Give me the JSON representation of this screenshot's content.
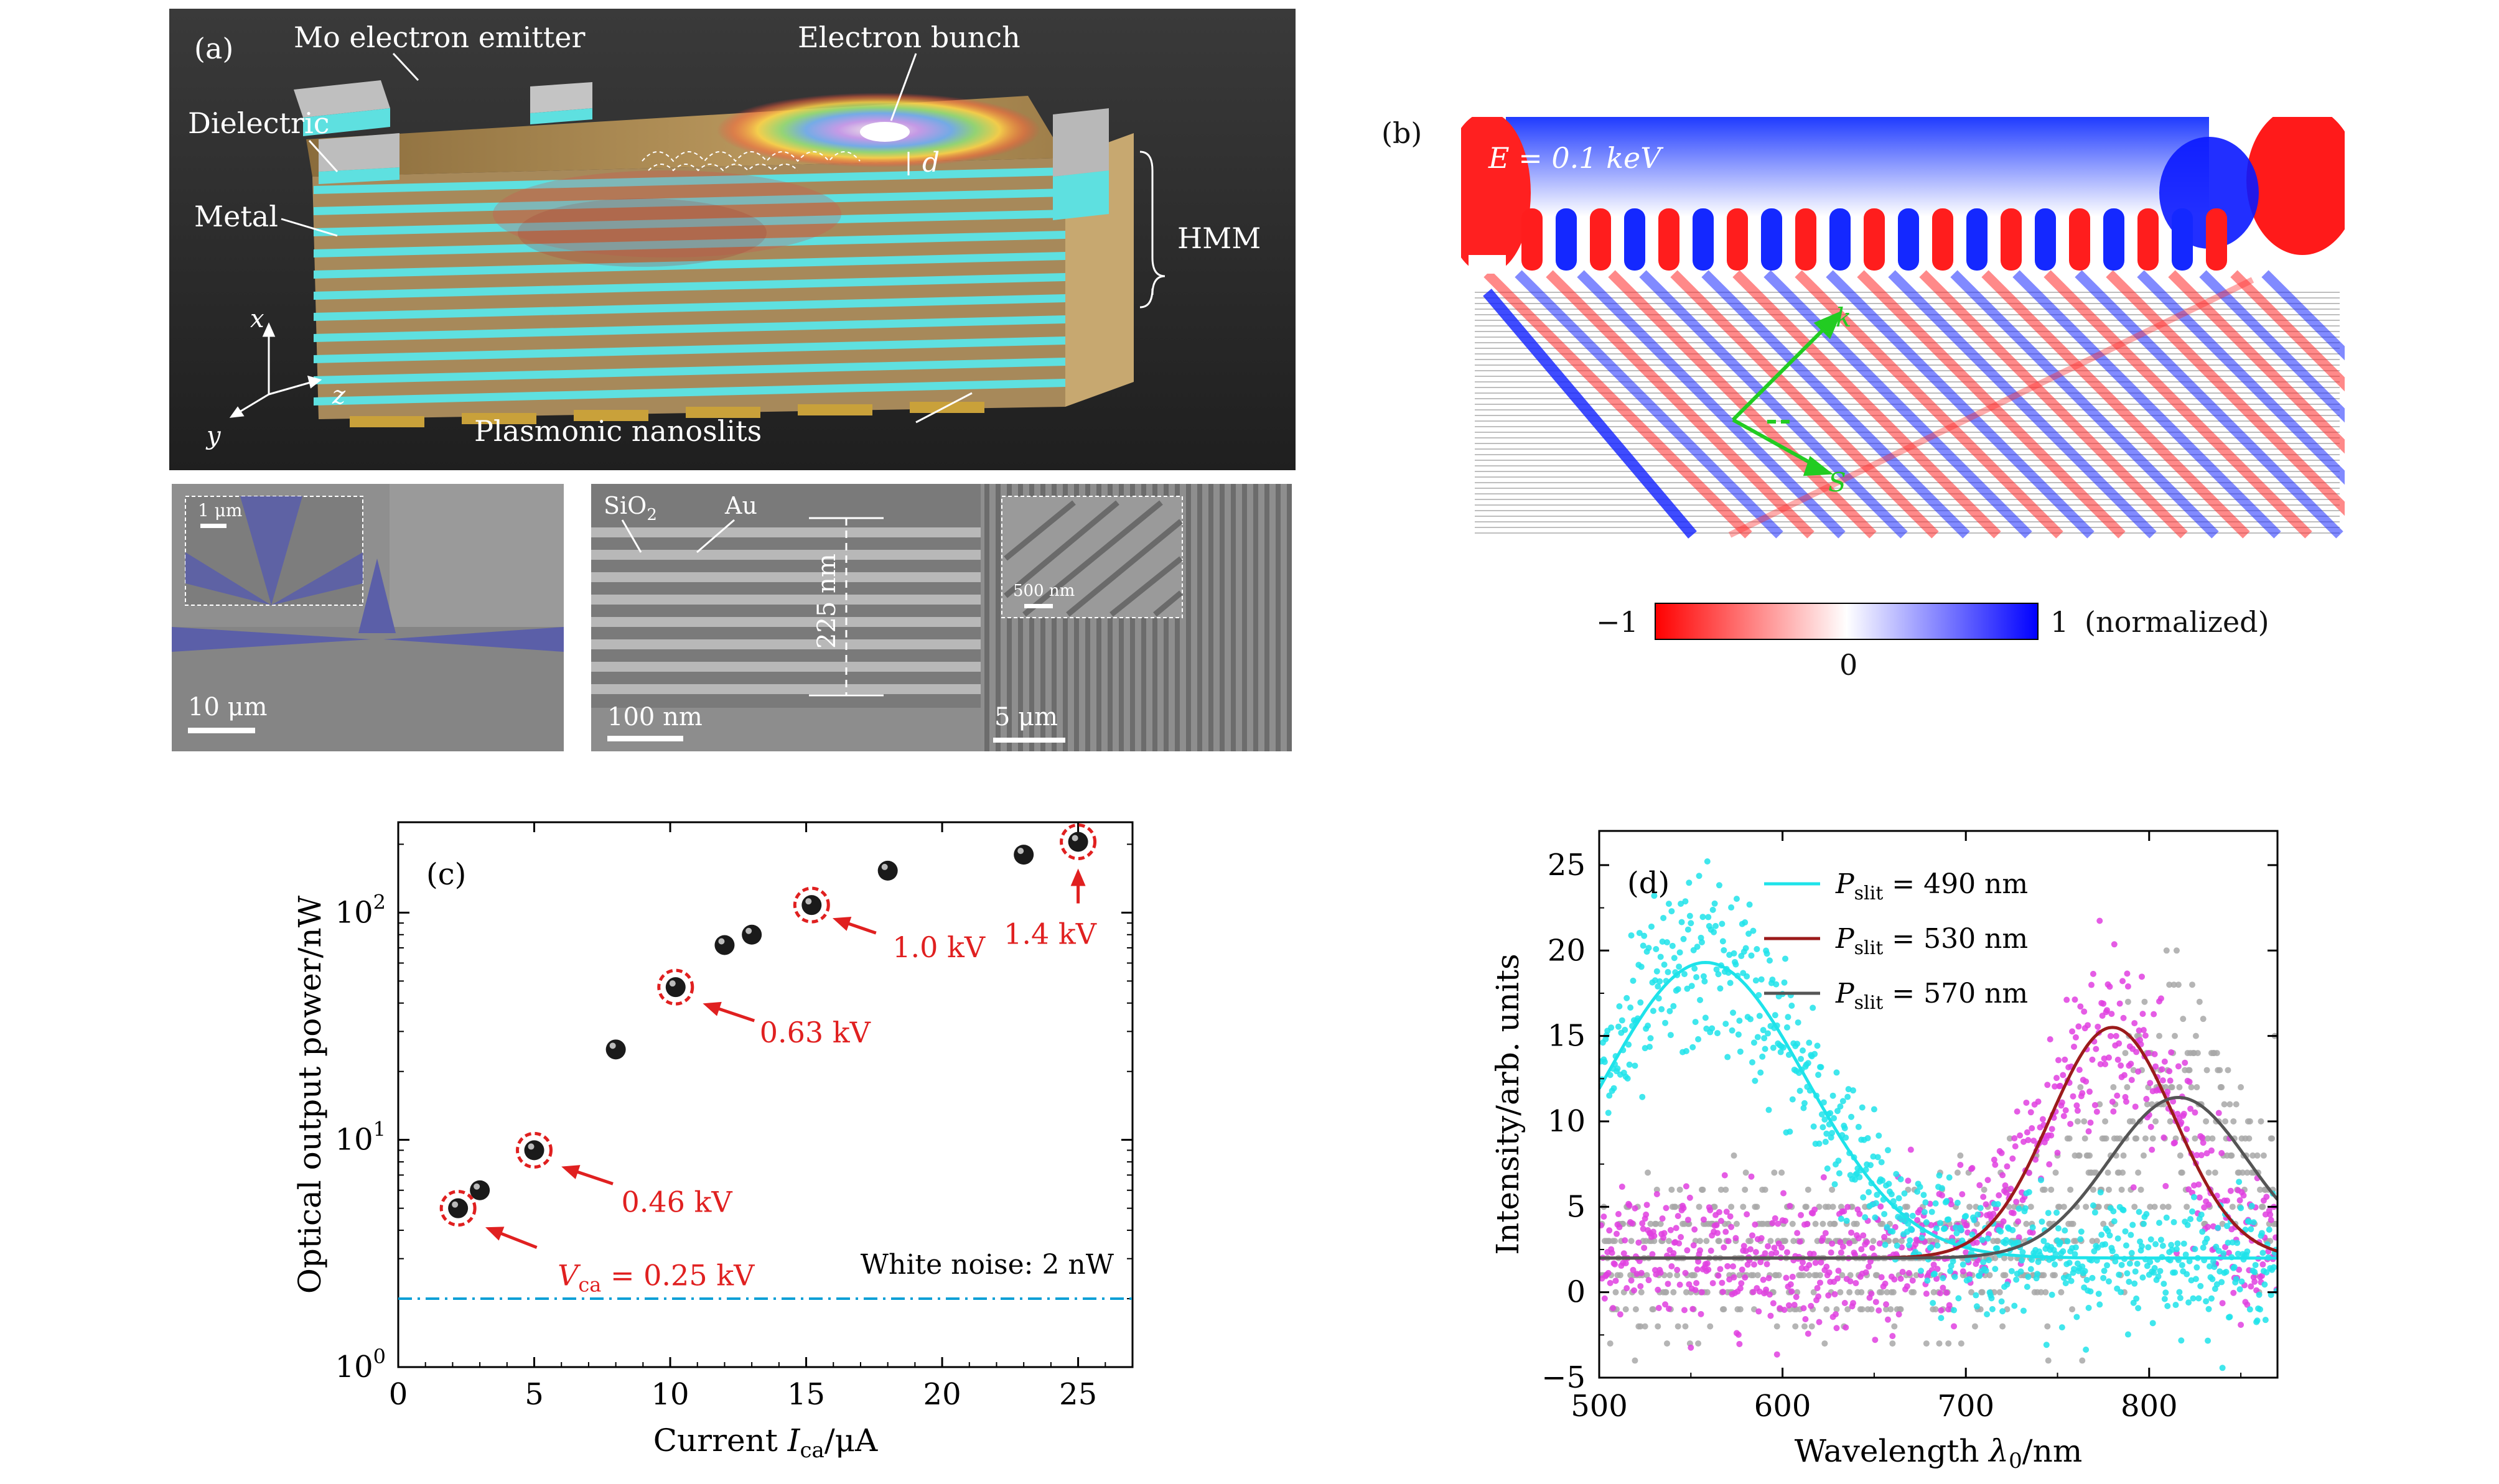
{
  "panel_a": {
    "label": "(a)",
    "mo_emitter": "Mo electron emitter",
    "electron_bunch": "Electron bunch",
    "dielectric": "Dielectric",
    "metal": "Metal",
    "hmm": "HMM",
    "d": "d",
    "nanoslits": "Plasmonic nanoslits",
    "axis_x": "x",
    "axis_y": "y",
    "axis_z": "z",
    "sem1": {
      "scale": "10 μm",
      "inset_scale": "1 μm"
    },
    "sem2": {
      "scale": "100 nm",
      "sio2": "SiO",
      "sio2_sub": "2",
      "au": "Au",
      "thickness": "225 nm"
    },
    "sem3": {
      "scale": "5 μm",
      "inset_scale": "500 nm"
    }
  },
  "panel_b": {
    "label": "(b)",
    "energy": "E = 0.1 keV",
    "k": "k",
    "s": "S",
    "cbar_min": "−1",
    "cbar_max": "1",
    "cbar_mid": "0",
    "cbar_unit": "(normalized)"
  },
  "chart_data": [
    {
      "panel": "(c)",
      "type": "scatter",
      "xlabel": "Current I_ca/μA",
      "ylabel": "Optical output power/nW",
      "yscale": "log",
      "xlim": [
        0,
        27
      ],
      "ylim": [
        1,
        250
      ],
      "xticks": [
        0,
        5,
        10,
        15,
        20,
        25
      ],
      "yticks": [
        "10^0",
        "10^1",
        "10^2"
      ],
      "points": [
        {
          "x": 2.2,
          "y": 5.0
        },
        {
          "x": 3.0,
          "y": 6.0
        },
        {
          "x": 5.0,
          "y": 9.0
        },
        {
          "x": 8.0,
          "y": 25
        },
        {
          "x": 10.2,
          "y": 47
        },
        {
          "x": 12.0,
          "y": 72
        },
        {
          "x": 13.0,
          "y": 80
        },
        {
          "x": 15.2,
          "y": 108
        },
        {
          "x": 18.0,
          "y": 153
        },
        {
          "x": 23.0,
          "y": 180
        },
        {
          "x": 25.0,
          "y": 205
        }
      ],
      "annotations": [
        {
          "x": 2.2,
          "y": 5.0,
          "text": "V_ca = 0.25 kV"
        },
        {
          "x": 5.0,
          "y": 9.0,
          "text": "0.46 kV"
        },
        {
          "x": 10.2,
          "y": 47,
          "text": "0.63 kV"
        },
        {
          "x": 15.2,
          "y": 108,
          "text": "1.0 kV"
        },
        {
          "x": 25.0,
          "y": 205,
          "text": "1.4 kV"
        }
      ],
      "noise_level": 2,
      "noise_label": "White noise: 2 nW"
    },
    {
      "panel": "(d)",
      "type": "line",
      "xlabel": "Wavelength λ0/nm",
      "ylabel": "Intensity/arb. units",
      "xlim": [
        500,
        870
      ],
      "ylim": [
        -5,
        27
      ],
      "xticks": [
        500,
        600,
        700,
        800
      ],
      "yticks": [
        -5,
        0,
        5,
        10,
        15,
        20,
        25
      ],
      "series": [
        {
          "name": "P_slit = 490 nm",
          "color": "#1ee3ea",
          "baseline": 2.0,
          "amplitude": 17.3,
          "center": 558,
          "sigma": 55,
          "noise": 1.9
        },
        {
          "name": "P_slit = 530 nm",
          "color": "#9b1b1b",
          "point_color": "#e040e0",
          "baseline": 2.0,
          "amplitude": 13.5,
          "center": 780,
          "sigma": 34,
          "noise": 2.2
        },
        {
          "name": "P_slit = 570 nm",
          "color": "#555555",
          "point_color": "#a8a8a8",
          "baseline": 2.0,
          "amplitude": 9.4,
          "center": 816,
          "sigma": 38,
          "noise": 2.6
        }
      ]
    }
  ]
}
